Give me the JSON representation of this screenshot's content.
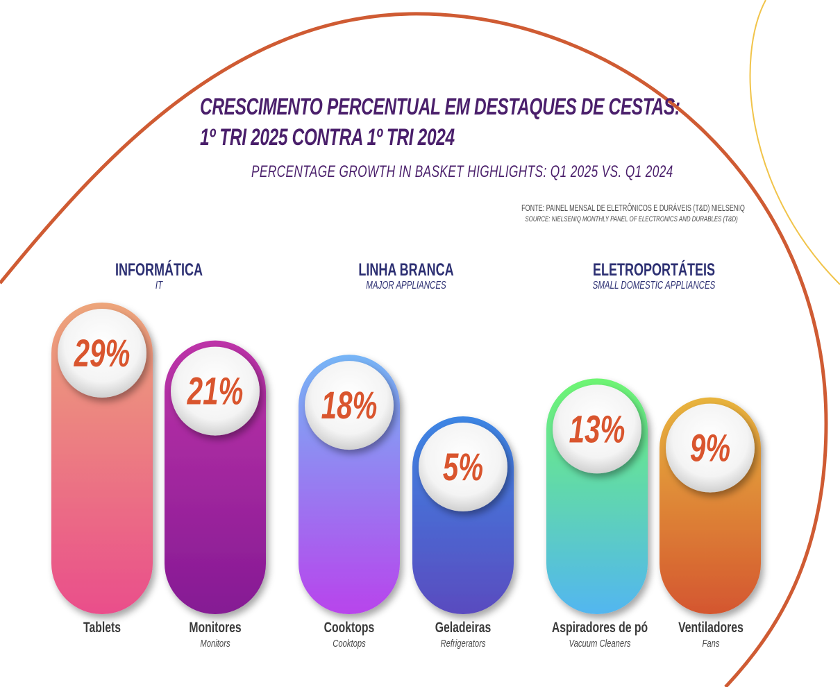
{
  "title_line1": "CRESCIMENTO PERCENTUAL EM DESTAQUES DE CESTAS:",
  "title_line2": "1º TRI 2025 CONTRA 1º TRI 2024",
  "subtitle": "PERCENTAGE GROWTH IN BASKET HIGHLIGHTS: Q1 2025 VS. Q1 2024",
  "source_pt": "FONTE: PAINEL MENSAL DE ELETRÔNICOS E DURÁVEIS (T&D) NIELSENIQ",
  "source_en": "SOURCE: NIELSENIQ MONTHLY PANEL OF ELECTRONICS AND DURABLES (T&D)",
  "groups": [
    {
      "pt": "INFORMÁTICA",
      "en": "IT"
    },
    {
      "pt": "LINHA BRANCA",
      "en": "MAJOR APPLIANCES"
    },
    {
      "pt": "ELETROPORTÁTEIS",
      "en": "SMALL DOMESTIC APPLIANCES"
    }
  ],
  "colors": {
    "title": "#4a1f6b",
    "group_heading": "#2c2f72",
    "value_text": "#d9552e",
    "arc_main": "#cf5b33",
    "arc_side": "#f1c44a"
  },
  "chart_data": {
    "type": "bar",
    "unit": "%",
    "categories": [
      "Tablets",
      "Monitores",
      "Cooktops",
      "Geladeiras",
      "Aspiradores de pó",
      "Ventiladores"
    ],
    "categories_en": [
      "",
      "Monitors",
      "Cooktops",
      "Refrigerators",
      "Vacuum Cleaners",
      "Fans"
    ],
    "values": [
      29,
      21,
      18,
      5,
      13,
      9
    ],
    "labels": [
      "29%",
      "21%",
      "18%",
      "5%",
      "13%",
      "9%"
    ],
    "group_of": [
      0,
      0,
      1,
      1,
      2,
      2
    ],
    "bar_gradients": [
      [
        "#eda57a",
        "#ea4e8b"
      ],
      [
        "#bd34a8",
        "#851a94"
      ],
      [
        "#76b5f6",
        "#b844ec"
      ],
      [
        "#3d86e4",
        "#5a4bbf"
      ],
      [
        "#6ef572",
        "#52b6f0"
      ],
      [
        "#e8b43e",
        "#d4562f"
      ]
    ],
    "ylim": [
      0,
      29
    ]
  }
}
